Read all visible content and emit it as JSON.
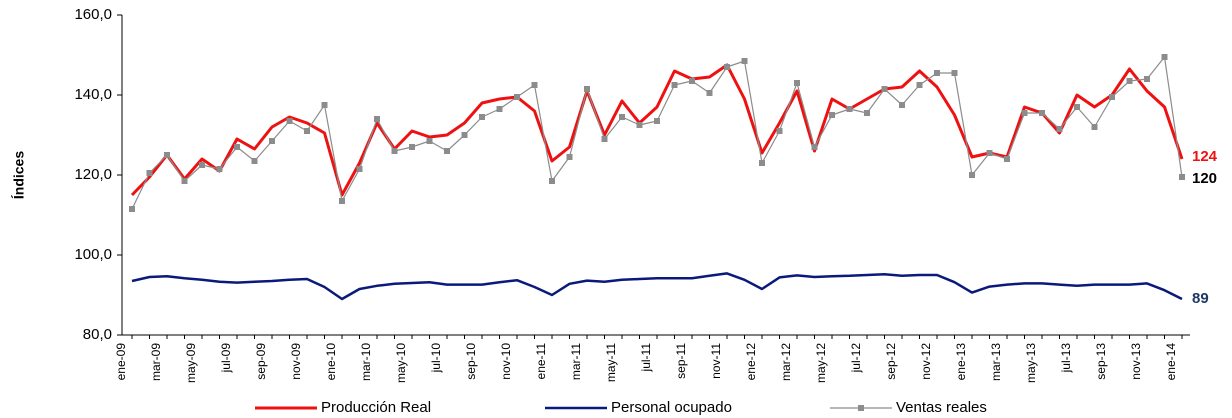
{
  "chart_data": {
    "type": "line",
    "y_label": "Índices",
    "categories": [
      "ene-09",
      null,
      "mar-09",
      null,
      "may-09",
      null,
      "jul-09",
      null,
      "sep-09",
      null,
      "nov-09",
      null,
      "ene-10",
      null,
      "mar-10",
      null,
      "may-10",
      null,
      "jul-10",
      null,
      "sep-10",
      null,
      "nov-10",
      null,
      "ene-11",
      null,
      "mar-11",
      null,
      "may-11",
      null,
      "jul-11",
      null,
      "sep-11",
      null,
      "nov-11",
      null,
      "ene-12",
      null,
      "mar-12",
      null,
      "may-12",
      null,
      "jul-12",
      null,
      "sep-12",
      null,
      "nov-12",
      null,
      "ene-13",
      null,
      "mar-13",
      null,
      "may-13",
      null,
      "jul-13",
      null,
      "sep-13",
      null,
      "nov-13",
      null,
      "ene-14"
    ],
    "series": [
      {
        "name": "Producción Real",
        "color": "#ee1111",
        "width": 3,
        "marker": false,
        "end_label": "124",
        "values": [
          115,
          119.5,
          125,
          119,
          124,
          121,
          129,
          126.5,
          132,
          134.5,
          133,
          130.5,
          115,
          123,
          133,
          126.5,
          131,
          129.5,
          130,
          133,
          138,
          139,
          139.5,
          136,
          123.5,
          127,
          141,
          130,
          138.5,
          133,
          137,
          146,
          144,
          144.5,
          147.5,
          139,
          125.5,
          133,
          141,
          126,
          139,
          136.5,
          139,
          141.5,
          142,
          146,
          142,
          135,
          124.5,
          125.5,
          124.5,
          137,
          135.5,
          130.5,
          140,
          137,
          140,
          146.5,
          141,
          137,
          124
        ]
      },
      {
        "name": "Personal ocupado",
        "color": "#0a1a7a",
        "width": 2.5,
        "marker": false,
        "end_label": "89",
        "end_label_color": "#1f3864",
        "values": [
          93.5,
          94.5,
          94.7,
          94.2,
          93.8,
          93.3,
          93.1,
          93.3,
          93.5,
          93.8,
          94,
          92,
          89,
          91.5,
          92.3,
          92.8,
          93,
          93.2,
          92.6,
          92.6,
          92.6,
          93.2,
          93.7,
          92,
          90,
          92.8,
          93.6,
          93.3,
          93.8,
          94,
          94.2,
          94.2,
          94.2,
          94.8,
          95.4,
          93.8,
          91.5,
          94.4,
          94.9,
          94.5,
          94.7,
          94.8,
          95,
          95.2,
          94.8,
          95,
          95,
          93.2,
          90.6,
          92.1,
          92.6,
          92.9,
          92.9,
          92.6,
          92.3,
          92.6,
          92.6,
          92.6,
          92.9,
          91.2,
          89
        ]
      },
      {
        "name": "Ventas reales",
        "color": "#8c8c8c",
        "width": 1.2,
        "marker": true,
        "end_label": "120",
        "end_label_color": "#000000",
        "values": [
          111.5,
          120.5,
          125,
          118.5,
          122.5,
          121.5,
          127,
          123.5,
          128.5,
          133.5,
          131,
          137.5,
          113.5,
          121.5,
          134,
          126,
          127,
          128.5,
          126,
          130,
          134.5,
          136.5,
          139.5,
          142.5,
          118.5,
          124.5,
          141.5,
          129,
          134.5,
          132.5,
          133.5,
          142.5,
          143.5,
          140.5,
          147,
          148.5,
          123,
          131,
          143,
          127,
          135,
          136.5,
          135.5,
          141.5,
          137.5,
          142.5,
          145.5,
          145.5,
          120,
          125.5,
          124,
          135.5,
          135.5,
          131.5,
          137,
          132,
          139.5,
          143.5,
          144,
          149.5,
          119.5
        ]
      }
    ],
    "ylim": [
      80,
      160
    ],
    "yticks": [
      {
        "value": 80,
        "label": "80,0"
      },
      {
        "value": 100,
        "label": "100,0"
      },
      {
        "value": 120,
        "label": "120,0"
      },
      {
        "value": 140,
        "label": "140,0"
      },
      {
        "value": 160,
        "label": "160,0"
      }
    ],
    "grid": false,
    "legend": "bottom"
  }
}
